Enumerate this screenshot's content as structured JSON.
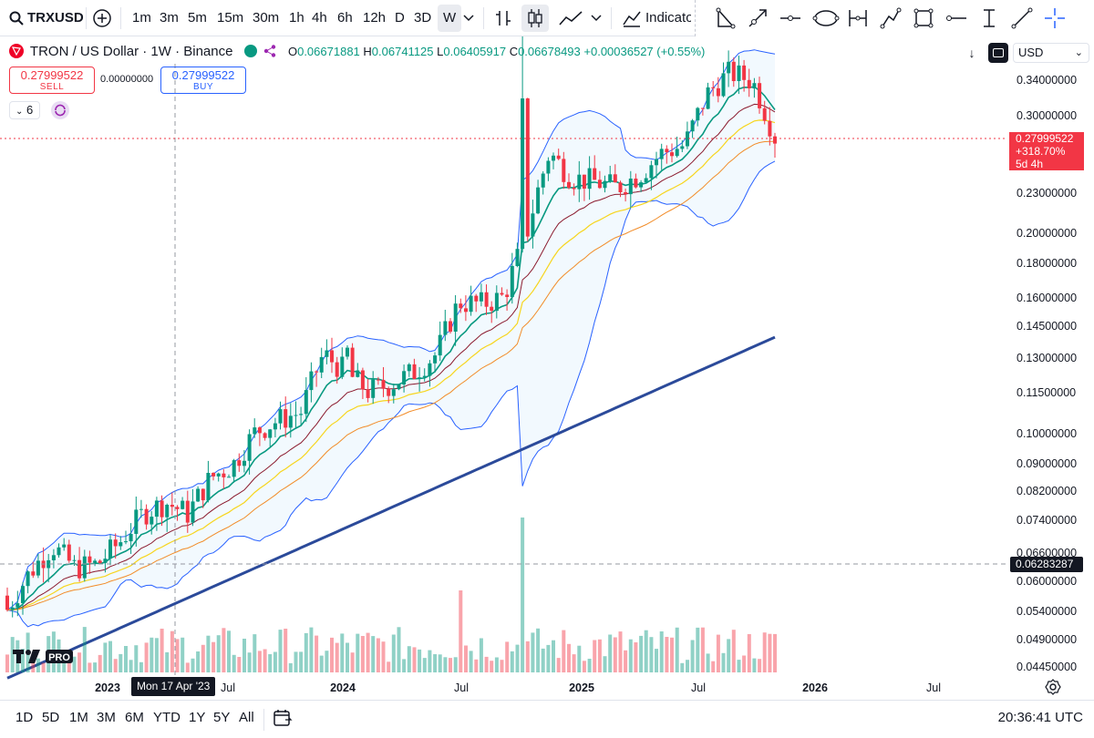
{
  "toolbar": {
    "symbol": "TRXUSD",
    "intervals": [
      "1m",
      "3m",
      "5m",
      "15m",
      "30m",
      "1h",
      "4h",
      "6h",
      "12h",
      "D",
      "3D",
      "W"
    ],
    "active_interval": "W",
    "indicators_label": "Indicato"
  },
  "legend": {
    "title": "TRON / US Dollar · 1W · Binance",
    "o_label": "O",
    "o_value": "0.06671881",
    "h_label": "H",
    "h_value": "0.06741125",
    "l_label": "L",
    "l_value": "0.06405917",
    "c_label": "C",
    "c_value": "0.06678493",
    "change": "+0.00036527 (+0.55%)",
    "sell_price": "0.27999522",
    "sell_label": "SELL",
    "spread": "0.00000000",
    "buy_price": "0.27999522",
    "buy_label": "BUY",
    "indicator_count": "6"
  },
  "currency": "USD",
  "price_axis": {
    "ticks": [
      "0.34000000",
      "0.30000000",
      "0.23000000",
      "0.20000000",
      "0.18000000",
      "0.16000000",
      "0.14500000",
      "0.13000000",
      "0.11500000",
      "0.10000000",
      "0.09000000",
      "0.08200000",
      "0.07400000",
      "0.06600000",
      "0.06000000",
      "0.05400000",
      "0.04900000",
      "0.04450000"
    ],
    "current_price": "0.27999522",
    "current_change": "+318.70%",
    "countdown": "5d 4h",
    "crosshair_price": "0.06283287"
  },
  "time_axis": {
    "labels": [
      "2023",
      "Jul",
      "2024",
      "Jul",
      "2025",
      "Jul",
      "2026",
      "Jul"
    ],
    "bold": [
      true,
      false,
      true,
      false,
      true,
      false,
      true,
      false
    ],
    "crosshair_date": "Mon 17 Apr '23"
  },
  "bottom_bar": {
    "ranges": [
      "1D",
      "5D",
      "1M",
      "3M",
      "6M",
      "YTD",
      "1Y",
      "5Y",
      "All"
    ],
    "clock": "20:36:41 UTC"
  },
  "watermark": "PRO",
  "colors": {
    "up": "#089981",
    "down": "#f23645",
    "bollinger": "#2962ff",
    "ema_fast": "#089981",
    "ema_mid": "#8b1a2e",
    "ema_yellow": "#f7d51d",
    "ema_orange": "#f28c28",
    "ma_long": "#2b4a9a"
  },
  "chart_data": {
    "type": "candlestick",
    "series": [
      {
        "name": "TRXUSD weekly close",
        "x": [
          "2022-12",
          "2023-01",
          "2023-02",
          "2023-03",
          "2023-04",
          "2023-05",
          "2023-06",
          "2023-07",
          "2023-08",
          "2023-09",
          "2023-10",
          "2023-11",
          "2023-12",
          "2024-01",
          "2024-02",
          "2024-03",
          "2024-04",
          "2024-05",
          "2024-06",
          "2024-07",
          "2024-08",
          "2024-09",
          "2024-10",
          "2024-11",
          "2024-12",
          "2025-01",
          "2025-02",
          "2025-03",
          "2025-04",
          "2025-05",
          "2025-06",
          "2025-07",
          "2025-08",
          "2025-09",
          "2025-10"
        ],
        "values": [
          0.0545,
          0.062,
          0.068,
          0.063,
          0.0638,
          0.069,
          0.076,
          0.079,
          0.076,
          0.086,
          0.09,
          0.101,
          0.105,
          0.108,
          0.132,
          0.124,
          0.116,
          0.119,
          0.124,
          0.132,
          0.158,
          0.157,
          0.161,
          0.2,
          0.265,
          0.243,
          0.24,
          0.235,
          0.246,
          0.265,
          0.272,
          0.325,
          0.35,
          0.34,
          0.28
        ]
      }
    ],
    "price_range": [
      0.0425,
      0.37
    ],
    "scale": "log",
    "overlays": [
      "Bollinger Bands",
      "EMA fast",
      "EMA mid",
      "EMA yellow",
      "EMA orange",
      "Long MA"
    ],
    "volume": true
  }
}
